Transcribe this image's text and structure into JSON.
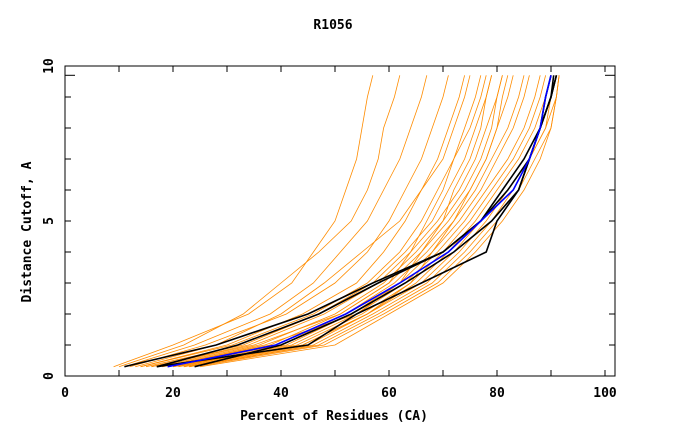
{
  "chart_data": {
    "type": "line",
    "title": "R1056",
    "xlabel": "Percent of Residues (CA)",
    "ylabel": "Distance Cutoff, A",
    "xlim": [
      0,
      102
    ],
    "ylim": [
      0,
      10
    ],
    "x_ticks": [
      "0",
      "20",
      "40",
      "60",
      "80",
      "100"
    ],
    "x_tick_values": [
      0,
      20,
      40,
      60,
      80,
      100
    ],
    "y_ticks": [
      "0",
      "5",
      "10"
    ],
    "y_tick_values": [
      0,
      5,
      10
    ],
    "grid": false,
    "colors": {
      "models": "#ff8c00",
      "highlight": "#000000",
      "reference": "#0000ff"
    },
    "y_levels": [
      0.3,
      1,
      2,
      3,
      4,
      5,
      6,
      7,
      8,
      9,
      9.7
    ],
    "series": [
      {
        "group": "models",
        "x": [
          9,
          20,
          34,
          42,
          46,
          50,
          52,
          54,
          55,
          56,
          57
        ]
      },
      {
        "group": "models",
        "x": [
          10,
          22,
          33,
          40,
          47,
          53,
          56,
          58,
          59,
          61,
          62
        ]
      },
      {
        "group": "models",
        "x": [
          11,
          24,
          38,
          46,
          51,
          56,
          59,
          62,
          64,
          66,
          67
        ]
      },
      {
        "group": "models",
        "x": [
          12,
          26,
          41,
          50,
          56,
          60,
          63,
          66,
          68,
          70,
          71
        ]
      },
      {
        "group": "models",
        "x": [
          13,
          28,
          40,
          48,
          55,
          62,
          66,
          70,
          72,
          74,
          75
        ]
      },
      {
        "group": "models",
        "x": [
          14,
          30,
          44,
          54,
          59,
          63,
          66,
          69,
          71,
          73,
          74
        ]
      },
      {
        "group": "models",
        "x": [
          14,
          31,
          46,
          56,
          62,
          66,
          69,
          72,
          74,
          76,
          77
        ]
      },
      {
        "group": "models",
        "x": [
          15,
          33,
          47,
          57,
          63,
          68,
          71,
          74,
          76,
          78,
          79
        ]
      },
      {
        "group": "models",
        "x": [
          16,
          34,
          48,
          58,
          64,
          69,
          73,
          76,
          78,
          80,
          81
        ]
      },
      {
        "group": "models",
        "x": [
          17,
          36,
          50,
          59,
          65,
          70,
          74,
          77,
          79,
          80,
          81
        ]
      },
      {
        "group": "models",
        "x": [
          18,
          38,
          51,
          60,
          66,
          71,
          75,
          78,
          80,
          82,
          83
        ]
      },
      {
        "group": "models",
        "x": [
          19,
          40,
          52,
          61,
          67,
          72,
          76,
          79,
          82,
          84,
          85
        ]
      },
      {
        "group": "models",
        "x": [
          20,
          41,
          53,
          62,
          68,
          73,
          77,
          80,
          83,
          85,
          86
        ]
      },
      {
        "group": "models",
        "x": [
          20,
          42,
          54,
          63,
          69,
          74,
          78,
          82,
          85,
          87,
          88
        ]
      },
      {
        "group": "models",
        "x": [
          21,
          43,
          55,
          64,
          70,
          75,
          79,
          83,
          86,
          88,
          89
        ]
      },
      {
        "group": "models",
        "x": [
          22,
          44,
          56,
          65,
          71,
          76,
          80,
          84,
          87,
          89,
          90
        ]
      },
      {
        "group": "models",
        "x": [
          22,
          45,
          56,
          66,
          72,
          77,
          81,
          85,
          88,
          90,
          91
        ]
      },
      {
        "group": "models",
        "x": [
          23,
          46,
          57,
          67,
          73,
          78,
          82,
          86,
          89,
          90,
          91
        ]
      },
      {
        "group": "models",
        "x": [
          23,
          47,
          58,
          68,
          74,
          79,
          83,
          86,
          89,
          91,
          91.5
        ]
      },
      {
        "group": "models",
        "x": [
          24,
          48,
          59,
          69,
          75,
          80,
          84,
          87,
          90,
          91,
          91.5
        ]
      },
      {
        "group": "models",
        "x": [
          25,
          50,
          60,
          70,
          76,
          81,
          85,
          88,
          90,
          91,
          91.5
        ]
      },
      {
        "group": "models",
        "x": [
          18,
          37,
          54,
          62,
          66,
          70,
          72,
          75,
          77,
          78,
          79
        ]
      },
      {
        "group": "models",
        "x": [
          16,
          35,
          51,
          60,
          64,
          67,
          70,
          72,
          75,
          77,
          78
        ]
      },
      {
        "group": "models",
        "x": [
          20,
          44,
          56,
          64,
          68,
          72,
          75,
          78,
          80,
          81,
          82
        ]
      },
      {
        "group": "highlight",
        "x": [
          11,
          28,
          45,
          57,
          70,
          77,
          81,
          85,
          88,
          89,
          90
        ]
      },
      {
        "group": "highlight",
        "x": [
          17,
          32,
          47,
          58,
          70,
          77,
          82,
          86,
          88,
          90,
          90.5
        ]
      },
      {
        "group": "highlight",
        "x": [
          24,
          40,
          53,
          63,
          72,
          79,
          84,
          86,
          88,
          90,
          91
        ]
      },
      {
        "group": "highlight",
        "x": [
          17,
          45,
          54,
          66,
          78,
          80,
          84,
          86,
          88,
          90,
          91
        ]
      },
      {
        "group": "reference",
        "x": [
          19,
          39,
          52,
          62,
          71,
          77,
          83,
          86,
          88,
          89,
          90
        ]
      }
    ]
  }
}
